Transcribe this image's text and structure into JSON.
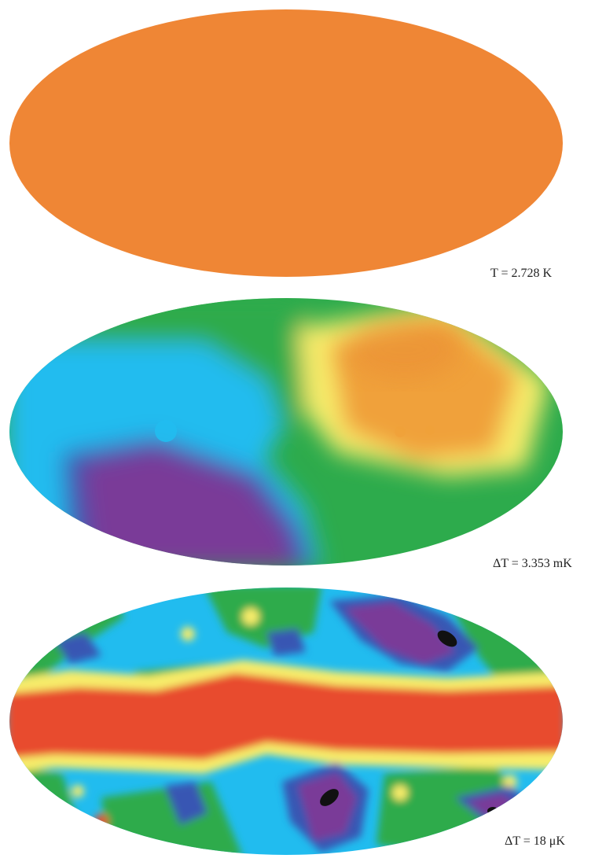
{
  "maps": [
    {
      "id": "uniform",
      "caption": "T = 2.728 K"
    },
    {
      "id": "dipole",
      "caption": "ΔT = 3.353 mK"
    },
    {
      "id": "anisotropy",
      "caption": "ΔT = 18 μK"
    }
  ],
  "colors": {
    "uniform": "#ef8635",
    "red": "#e84c2f",
    "orange": "#f0a13a",
    "yellow": "#f7ec6a",
    "green": "#2dab4c",
    "cyan": "#21bcef",
    "blue": "#3757b3",
    "purple": "#7a3a98",
    "black": "#111111"
  }
}
